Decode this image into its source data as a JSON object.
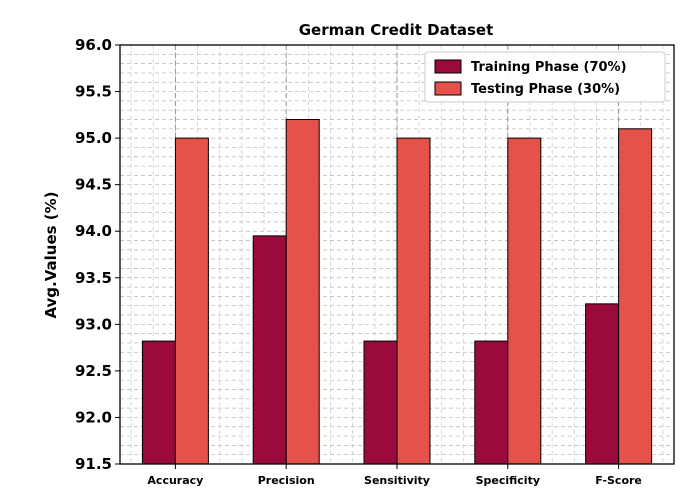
{
  "chart_data": {
    "type": "bar",
    "title": "German Credit Dataset",
    "xlabel": "",
    "ylabel": "Avg.Values (%)",
    "ylim": [
      91.5,
      96.0
    ],
    "yticks": [
      "91.5",
      "92.0",
      "92.5",
      "93.0",
      "93.5",
      "94.0",
      "94.5",
      "95.0",
      "95.5",
      "96.0"
    ],
    "categories": [
      "Accuracy",
      "Precision",
      "Sensitivity",
      "Specificity",
      "F-Score"
    ],
    "series": [
      {
        "name": "Training Phase (70%)",
        "color": "#9b0a3c",
        "values": [
          92.82,
          93.95,
          92.82,
          92.82,
          93.22
        ]
      },
      {
        "name": "Testing Phase (30%)",
        "color": "#e4524a",
        "values": [
          95.0,
          95.2,
          95.0,
          95.0,
          95.1
        ]
      }
    ],
    "grid": true,
    "legend_position": "top-right"
  }
}
